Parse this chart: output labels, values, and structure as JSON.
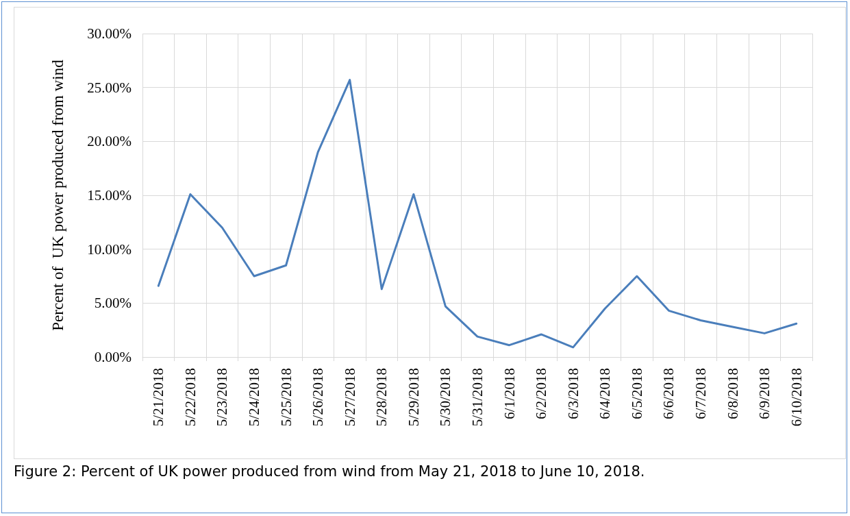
{
  "chart_data": {
    "type": "line",
    "ylabel": "Percent of  UK power produced from wind",
    "categories": [
      "5/21/2018",
      "5/22/2018",
      "5/23/2018",
      "5/24/2018",
      "5/25/2018",
      "5/26/2018",
      "5/27/2018",
      "5/28/2018",
      "5/29/2018",
      "5/30/2018",
      "5/31/2018",
      "6/1/2018",
      "6/2/2018",
      "6/3/2018",
      "6/4/2018",
      "6/5/2018",
      "6/6/2018",
      "6/7/2018",
      "6/8/2018",
      "6/9/2018",
      "6/10/2018"
    ],
    "series": [
      {
        "color": "#4a7ebb",
        "values": [
          6.6,
          15.1,
          12.0,
          7.5,
          8.5,
          19.0,
          25.7,
          6.3,
          15.1,
          4.7,
          1.9,
          1.1,
          2.1,
          0.9,
          4.5,
          7.5,
          4.3,
          3.4,
          2.8,
          2.2,
          3.1
        ]
      }
    ],
    "ylim": [
      0,
      30
    ],
    "yticks": [
      {
        "value": 0,
        "label": "0.00%"
      },
      {
        "value": 5,
        "label": "5.00%"
      },
      {
        "value": 10,
        "label": "10.00%"
      },
      {
        "value": 15,
        "label": "15.00%"
      },
      {
        "value": 20,
        "label": "20.00%"
      },
      {
        "value": 25,
        "label": "25.00%"
      },
      {
        "value": 30,
        "label": "30.00%"
      }
    ],
    "grid": true,
    "marker": "none",
    "line_style": "solid",
    "annotations": [
      "Figure 2: Percent of UK power produced from wind from May 21, 2018 to June 10, 2018."
    ]
  }
}
